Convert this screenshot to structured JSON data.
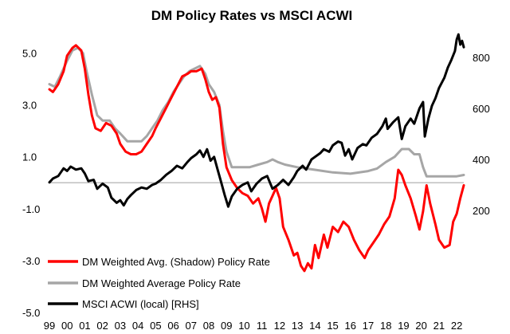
{
  "chart_data": {
    "type": "line",
    "title": "DM Policy Rates vs MSCI ACWI",
    "x_tick_labels": [
      "99",
      "00",
      "01",
      "02",
      "03",
      "04",
      "05",
      "06",
      "07",
      "08",
      "09",
      "10",
      "11",
      "12",
      "13",
      "14",
      "15",
      "16",
      "17",
      "18",
      "19",
      "20",
      "21",
      "22"
    ],
    "x_range": [
      1999.0,
      2022.4
    ],
    "y_left": {
      "ticks": [
        "5.0",
        "3.0",
        "1.0",
        "-1.0",
        "-3.0",
        "-5.0"
      ],
      "tick_values": [
        5,
        3,
        1,
        -1,
        -3,
        -5
      ],
      "range": [
        -5,
        6.8
      ]
    },
    "y_right": {
      "ticks": [
        "800",
        "600",
        "400",
        "200"
      ],
      "tick_values": [
        800,
        600,
        400,
        200
      ],
      "range": [
        -200,
        1000
      ]
    },
    "legend_position": "bottom-left",
    "series": [
      {
        "name": "DM Weighted Avg. (Shadow) Policy Rate",
        "axis": "left",
        "color": "#ff0000",
        "points": [
          [
            1999.0,
            3.6
          ],
          [
            1999.2,
            3.5
          ],
          [
            1999.5,
            3.8
          ],
          [
            1999.8,
            4.3
          ],
          [
            2000.0,
            4.9
          ],
          [
            2000.3,
            5.2
          ],
          [
            2000.5,
            5.3
          ],
          [
            2000.8,
            5.1
          ],
          [
            2001.0,
            4.4
          ],
          [
            2001.2,
            3.4
          ],
          [
            2001.4,
            2.6
          ],
          [
            2001.6,
            2.1
          ],
          [
            2001.9,
            2.0
          ],
          [
            2002.2,
            2.3
          ],
          [
            2002.5,
            2.2
          ],
          [
            2002.8,
            1.9
          ],
          [
            2003.0,
            1.5
          ],
          [
            2003.3,
            1.2
          ],
          [
            2003.6,
            1.1
          ],
          [
            2003.9,
            1.1
          ],
          [
            2004.2,
            1.2
          ],
          [
            2004.5,
            1.5
          ],
          [
            2004.8,
            1.8
          ],
          [
            2005.0,
            2.1
          ],
          [
            2005.3,
            2.5
          ],
          [
            2005.6,
            2.9
          ],
          [
            2005.9,
            3.3
          ],
          [
            2006.2,
            3.7
          ],
          [
            2006.5,
            4.1
          ],
          [
            2006.8,
            4.2
          ],
          [
            2007.0,
            4.3
          ],
          [
            2007.3,
            4.3
          ],
          [
            2007.6,
            4.4
          ],
          [
            2007.8,
            4.0
          ],
          [
            2008.0,
            3.5
          ],
          [
            2008.2,
            3.2
          ],
          [
            2008.4,
            3.3
          ],
          [
            2008.6,
            2.9
          ],
          [
            2008.8,
            1.5
          ],
          [
            2009.0,
            0.6
          ],
          [
            2009.3,
            0.1
          ],
          [
            2009.6,
            -0.2
          ],
          [
            2009.9,
            -0.4
          ],
          [
            2010.2,
            -0.5
          ],
          [
            2010.5,
            -0.8
          ],
          [
            2010.8,
            -0.6
          ],
          [
            2011.0,
            -1.0
          ],
          [
            2011.2,
            -1.5
          ],
          [
            2011.4,
            -0.8
          ],
          [
            2011.6,
            -0.5
          ],
          [
            2011.8,
            -0.2
          ],
          [
            2012.0,
            -0.6
          ],
          [
            2012.2,
            -1.7
          ],
          [
            2012.5,
            -2.2
          ],
          [
            2012.8,
            -2.8
          ],
          [
            2013.0,
            -2.7
          ],
          [
            2013.2,
            -3.2
          ],
          [
            2013.4,
            -3.4
          ],
          [
            2013.6,
            -3.1
          ],
          [
            2013.8,
            -3.3
          ],
          [
            2014.0,
            -2.4
          ],
          [
            2014.2,
            -2.9
          ],
          [
            2014.5,
            -2.0
          ],
          [
            2014.7,
            -2.5
          ],
          [
            2015.0,
            -1.7
          ],
          [
            2015.3,
            -1.9
          ],
          [
            2015.6,
            -1.5
          ],
          [
            2015.9,
            -1.7
          ],
          [
            2016.2,
            -2.2
          ],
          [
            2016.5,
            -2.6
          ],
          [
            2016.8,
            -2.9
          ],
          [
            2017.0,
            -2.6
          ],
          [
            2017.3,
            -2.3
          ],
          [
            2017.6,
            -2.0
          ],
          [
            2017.9,
            -1.6
          ],
          [
            2018.2,
            -1.3
          ],
          [
            2018.5,
            -0.6
          ],
          [
            2018.7,
            0.5
          ],
          [
            2018.9,
            0.3
          ],
          [
            2019.1,
            -0.1
          ],
          [
            2019.4,
            -0.6
          ],
          [
            2019.7,
            -1.3
          ],
          [
            2019.9,
            -1.8
          ],
          [
            2020.1,
            -1.1
          ],
          [
            2020.3,
            -0.1
          ],
          [
            2020.5,
            -0.8
          ],
          [
            2020.8,
            -1.6
          ],
          [
            2021.0,
            -2.2
          ],
          [
            2021.3,
            -2.5
          ],
          [
            2021.6,
            -2.4
          ],
          [
            2021.8,
            -1.5
          ],
          [
            2022.0,
            -1.2
          ],
          [
            2022.2,
            -0.6
          ],
          [
            2022.4,
            -0.1
          ]
        ]
      },
      {
        "name": "DM Weighted Average Policy Rate",
        "axis": "left",
        "color": "#a6a6a6",
        "points": [
          [
            1999.0,
            3.8
          ],
          [
            1999.3,
            3.7
          ],
          [
            1999.6,
            4.1
          ],
          [
            2000.0,
            4.7
          ],
          [
            2000.3,
            5.1
          ],
          [
            2000.6,
            5.2
          ],
          [
            2000.9,
            5.0
          ],
          [
            2001.1,
            4.3
          ],
          [
            2001.4,
            3.4
          ],
          [
            2001.7,
            2.6
          ],
          [
            2002.0,
            2.4
          ],
          [
            2002.4,
            2.4
          ],
          [
            2002.7,
            2.1
          ],
          [
            2003.0,
            1.9
          ],
          [
            2003.4,
            1.6
          ],
          [
            2003.8,
            1.6
          ],
          [
            2004.2,
            1.6
          ],
          [
            2004.5,
            1.8
          ],
          [
            2004.8,
            2.1
          ],
          [
            2005.1,
            2.4
          ],
          [
            2005.4,
            2.8
          ],
          [
            2005.7,
            3.1
          ],
          [
            2006.0,
            3.5
          ],
          [
            2006.3,
            3.8
          ],
          [
            2006.6,
            4.1
          ],
          [
            2006.9,
            4.3
          ],
          [
            2007.2,
            4.4
          ],
          [
            2007.5,
            4.5
          ],
          [
            2007.8,
            4.2
          ],
          [
            2008.0,
            3.8
          ],
          [
            2008.3,
            3.5
          ],
          [
            2008.6,
            3.0
          ],
          [
            2008.8,
            2.0
          ],
          [
            2009.0,
            1.2
          ],
          [
            2009.3,
            0.6
          ],
          [
            2009.8,
            0.6
          ],
          [
            2010.3,
            0.6
          ],
          [
            2010.8,
            0.7
          ],
          [
            2011.3,
            0.8
          ],
          [
            2011.6,
            0.9
          ],
          [
            2011.9,
            0.8
          ],
          [
            2012.3,
            0.7
          ],
          [
            2013.0,
            0.6
          ],
          [
            2014.0,
            0.5
          ],
          [
            2015.0,
            0.4
          ],
          [
            2016.0,
            0.35
          ],
          [
            2017.0,
            0.45
          ],
          [
            2017.5,
            0.55
          ],
          [
            2018.0,
            0.8
          ],
          [
            2018.5,
            1.0
          ],
          [
            2018.9,
            1.3
          ],
          [
            2019.3,
            1.3
          ],
          [
            2019.6,
            1.1
          ],
          [
            2019.9,
            1.1
          ],
          [
            2020.1,
            0.6
          ],
          [
            2020.3,
            0.25
          ],
          [
            2020.8,
            0.25
          ],
          [
            2021.5,
            0.25
          ],
          [
            2022.0,
            0.25
          ],
          [
            2022.4,
            0.3
          ]
        ]
      },
      {
        "name": "MSCI ACWI (local) [RHS]",
        "axis": "right",
        "color": "#000000",
        "points": [
          [
            1999.0,
            310
          ],
          [
            1999.2,
            325
          ],
          [
            1999.5,
            335
          ],
          [
            1999.8,
            365
          ],
          [
            2000.0,
            355
          ],
          [
            2000.2,
            372
          ],
          [
            2000.5,
            360
          ],
          [
            2000.8,
            365
          ],
          [
            2001.0,
            345
          ],
          [
            2001.2,
            315
          ],
          [
            2001.5,
            320
          ],
          [
            2001.7,
            285
          ],
          [
            2002.0,
            305
          ],
          [
            2002.3,
            290
          ],
          [
            2002.5,
            250
          ],
          [
            2002.8,
            230
          ],
          [
            2003.0,
            240
          ],
          [
            2003.2,
            220
          ],
          [
            2003.4,
            245
          ],
          [
            2003.6,
            260
          ],
          [
            2003.9,
            280
          ],
          [
            2004.2,
            290
          ],
          [
            2004.5,
            285
          ],
          [
            2004.8,
            300
          ],
          [
            2005.0,
            305
          ],
          [
            2005.3,
            320
          ],
          [
            2005.6,
            340
          ],
          [
            2005.9,
            355
          ],
          [
            2006.2,
            375
          ],
          [
            2006.5,
            365
          ],
          [
            2006.8,
            390
          ],
          [
            2007.0,
            405
          ],
          [
            2007.3,
            420
          ],
          [
            2007.5,
            435
          ],
          [
            2007.7,
            410
          ],
          [
            2007.9,
            440
          ],
          [
            2008.1,
            395
          ],
          [
            2008.3,
            410
          ],
          [
            2008.5,
            360
          ],
          [
            2008.7,
            310
          ],
          [
            2008.9,
            260
          ],
          [
            2009.1,
            215
          ],
          [
            2009.3,
            255
          ],
          [
            2009.6,
            285
          ],
          [
            2009.9,
            300
          ],
          [
            2010.2,
            310
          ],
          [
            2010.4,
            275
          ],
          [
            2010.7,
            305
          ],
          [
            2011.0,
            325
          ],
          [
            2011.3,
            335
          ],
          [
            2011.6,
            285
          ],
          [
            2011.9,
            300
          ],
          [
            2012.2,
            320
          ],
          [
            2012.5,
            300
          ],
          [
            2012.8,
            330
          ],
          [
            2013.0,
            355
          ],
          [
            2013.3,
            375
          ],
          [
            2013.5,
            360
          ],
          [
            2013.8,
            400
          ],
          [
            2014.0,
            410
          ],
          [
            2014.3,
            425
          ],
          [
            2014.5,
            440
          ],
          [
            2014.8,
            430
          ],
          [
            2015.0,
            455
          ],
          [
            2015.3,
            470
          ],
          [
            2015.5,
            465
          ],
          [
            2015.7,
            415
          ],
          [
            2015.9,
            440
          ],
          [
            2016.1,
            400
          ],
          [
            2016.4,
            445
          ],
          [
            2016.7,
            460
          ],
          [
            2016.9,
            455
          ],
          [
            2017.2,
            485
          ],
          [
            2017.5,
            500
          ],
          [
            2017.8,
            530
          ],
          [
            2018.0,
            560
          ],
          [
            2018.1,
            520
          ],
          [
            2018.4,
            545
          ],
          [
            2018.7,
            565
          ],
          [
            2018.9,
            480
          ],
          [
            2019.1,
            530
          ],
          [
            2019.4,
            560
          ],
          [
            2019.6,
            540
          ],
          [
            2019.9,
            600
          ],
          [
            2020.1,
            625
          ],
          [
            2020.2,
            490
          ],
          [
            2020.4,
            560
          ],
          [
            2020.6,
            610
          ],
          [
            2020.8,
            640
          ],
          [
            2021.0,
            680
          ],
          [
            2021.3,
            720
          ],
          [
            2021.5,
            760
          ],
          [
            2021.7,
            790
          ],
          [
            2021.9,
            825
          ],
          [
            2022.0,
            870
          ],
          [
            2022.1,
            890
          ],
          [
            2022.2,
            850
          ],
          [
            2022.3,
            865
          ],
          [
            2022.4,
            840
          ]
        ]
      }
    ]
  }
}
